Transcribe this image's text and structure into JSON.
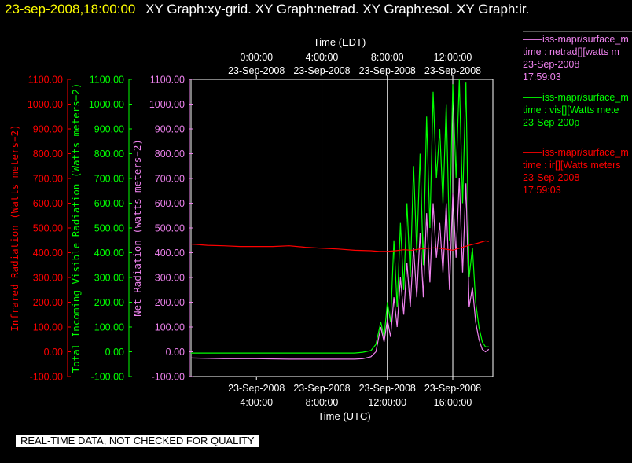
{
  "header": {
    "timestamp": "23-sep-2008,18:00:00",
    "graph_names": "XY Graph:xy-grid.  XY Graph:netrad.  XY Graph:esol.  XY Graph:ir."
  },
  "legend": [
    {
      "line1": "——iss-mapr/surface_m",
      "line2": "time : netrad[][watts m",
      "line3": "23-Sep-2008",
      "line4": "17:59:03",
      "color": "#ee82ee"
    },
    {
      "line1": "——iss-mapr/surface_m",
      "line2": "time : vis[][Watts mete",
      "line3": "23-Sep-200p",
      "line4": "",
      "color": "#00ff00"
    },
    {
      "line1": "——iss-mapr/surface_m",
      "line2": "time : ir[][Watts meters",
      "line3": "23-Sep-2008",
      "line4": "17:59:03",
      "color": "#ff0000"
    }
  ],
  "notice": "REAL-TIME DATA, NOT CHECKED FOR QUALITY",
  "chart_data": {
    "type": "line",
    "top_axis": {
      "label": "Time (EDT)",
      "ticks": [
        {
          "date": "23-Sep-2008",
          "time": "0:00:00"
        },
        {
          "date": "23-Sep-2008",
          "time": "4:00:00"
        },
        {
          "date": "23-Sep-2008",
          "time": "8:00:00"
        },
        {
          "date": "23-Sep-2008",
          "time": "12:00:00"
        }
      ]
    },
    "bottom_axis": {
      "label": "Time (UTC)",
      "ticks": [
        {
          "date": "23-Sep-2008",
          "time": "4:00:00"
        },
        {
          "date": "23-Sep-2008",
          "time": "8:00:00"
        },
        {
          "date": "23-Sep-2008",
          "time": "12:00:00"
        },
        {
          "date": "23-Sep-2008",
          "time": "16:00:00"
        }
      ],
      "range_utc_hours": [
        0,
        18.45
      ]
    },
    "y_axes": [
      {
        "label": "Infrared Radiation (Watts meters−2)",
        "color": "#ff0000",
        "ylim": [
          -100,
          1100
        ],
        "ticks": [
          "1100.00",
          "1000.00",
          "900.00",
          "800.00",
          "700.00",
          "600.00",
          "500.00",
          "400.00",
          "300.00",
          "200.00",
          "100.00",
          "0.00",
          "-100.00"
        ]
      },
      {
        "label": "Total Incoming Visible Radiation (Watts meters−2)",
        "color": "#00ff00",
        "ylim": [
          -100,
          1100
        ],
        "ticks": [
          "1100.00",
          "1000.00",
          "900.00",
          "800.00",
          "700.00",
          "600.00",
          "500.00",
          "400.00",
          "300.00",
          "200.00",
          "100.00",
          "0.00",
          "-100.00"
        ]
      },
      {
        "label": "Net Radiation (watts meters−2)",
        "color": "#ee82ee",
        "ylim": [
          -100,
          1100
        ],
        "ticks": [
          "1100.00",
          "1000.00",
          "900.00",
          "800.00",
          "700.00",
          "600.00",
          "500.00",
          "400.00",
          "300.00",
          "200.00",
          "100.00",
          "0.00",
          "-100.00"
        ]
      }
    ],
    "grid": {
      "x_utc_hours": [
        8,
        12,
        16
      ]
    },
    "series": [
      {
        "color": "#ff0000",
        "x": [
          0,
          1,
          2,
          3,
          4,
          5,
          6,
          7,
          8,
          9,
          10,
          11,
          11.5,
          12,
          12.5,
          13,
          13.5,
          14,
          14.5,
          15,
          15.5,
          16,
          16.5,
          17,
          17.5,
          18,
          18.2
        ],
        "y": [
          435,
          430,
          428,
          425,
          425,
          425,
          428,
          422,
          418,
          415,
          410,
          408,
          405,
          405,
          408,
          412,
          410,
          415,
          418,
          420,
          415,
          410,
          420,
          430,
          438,
          448,
          445
        ]
      },
      {
        "color": "#00ff00",
        "x": [
          0,
          2,
          4,
          6,
          8,
          10,
          10.5,
          11,
          11.3,
          11.6,
          11.8,
          12.0,
          12.2,
          12.4,
          12.6,
          12.8,
          13.0,
          13.2,
          13.4,
          13.6,
          13.8,
          14.0,
          14.2,
          14.4,
          14.6,
          14.8,
          15.0,
          15.2,
          15.4,
          15.6,
          15.8,
          16.0,
          16.2,
          16.4,
          16.6,
          16.8,
          17.0,
          17.2,
          17.4,
          17.6,
          17.8,
          18.0,
          18.2
        ],
        "y": [
          -5,
          -5,
          -5,
          -5,
          -5,
          -5,
          -2,
          5,
          30,
          120,
          60,
          200,
          120,
          450,
          180,
          520,
          250,
          600,
          300,
          750,
          400,
          800,
          350,
          950,
          500,
          1050,
          700,
          900,
          600,
          1000,
          450,
          1080,
          700,
          1100,
          600,
          1090,
          300,
          420,
          200,
          100,
          40,
          20,
          20
        ]
      },
      {
        "color": "#ee82ee",
        "x": [
          0,
          2,
          4,
          6,
          8,
          10,
          10.5,
          11,
          11.3,
          11.6,
          11.8,
          12.0,
          12.2,
          12.4,
          12.6,
          12.8,
          13.0,
          13.2,
          13.4,
          13.6,
          13.8,
          14.0,
          14.2,
          14.4,
          14.6,
          14.8,
          15.0,
          15.2,
          15.4,
          15.6,
          15.8,
          16.0,
          16.2,
          16.4,
          16.6,
          16.8,
          17.0,
          17.2,
          17.4,
          17.6,
          17.8,
          18.0,
          18.2
        ],
        "y": [
          -25,
          -28,
          -28,
          -30,
          -30,
          -30,
          -28,
          -20,
          0,
          100,
          40,
          130,
          60,
          220,
          100,
          300,
          150,
          360,
          180,
          420,
          220,
          480,
          220,
          560,
          280,
          600,
          380,
          520,
          320,
          600,
          250,
          640,
          380,
          700,
          320,
          680,
          180,
          260,
          120,
          50,
          10,
          0,
          10
        ]
      }
    ]
  }
}
